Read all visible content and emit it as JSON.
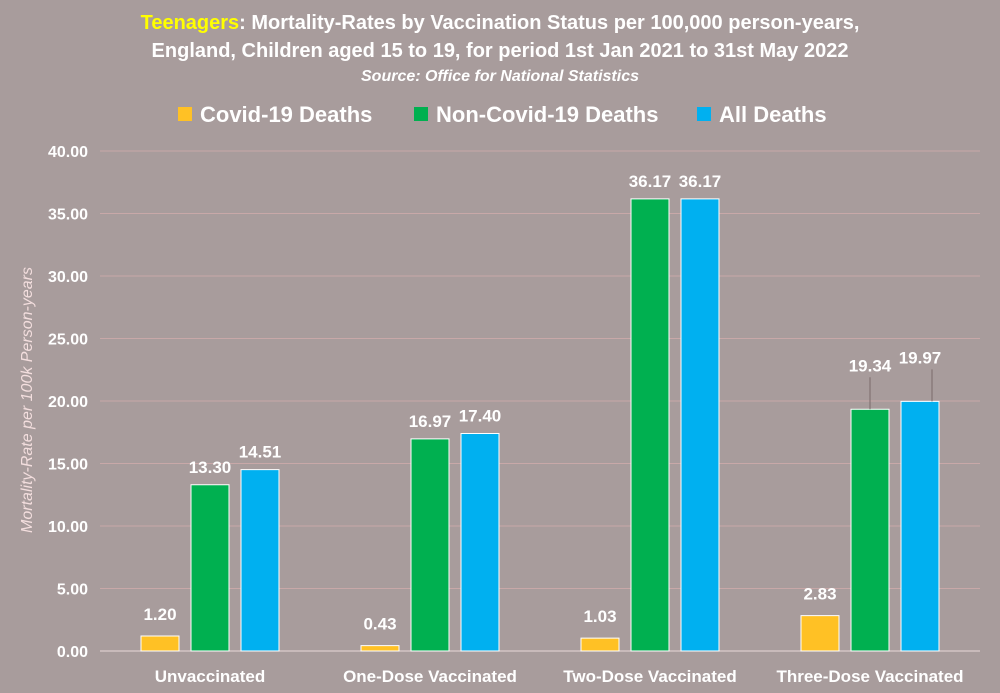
{
  "title": {
    "highlight": "Teenagers",
    "line1_rest": ": Mortality-Rates by Vaccination Status per 100,000 person-years,",
    "line2": "England, Children aged 15 to 19, for period 1st Jan 2021 to 31st May 2022",
    "source": "Source: Office for National Statistics"
  },
  "colors": {
    "background": "#a89c9c",
    "highlight": "#ffff00",
    "gridline": "#c8a8a8"
  },
  "chart_data": {
    "type": "bar",
    "categories": [
      "Unvaccinated",
      "One-Dose Vaccinated",
      "Two-Dose Vaccinated",
      "Three-Dose Vaccinated"
    ],
    "series": [
      {
        "name": "Covid-19 Deaths",
        "color": "#ffc125",
        "values": [
          1.2,
          0.43,
          1.03,
          2.83
        ],
        "labels": [
          "1.20",
          "0.43",
          "1.03",
          "2.83"
        ]
      },
      {
        "name": "Non-Covid-19 Deaths",
        "color": "#00b050",
        "values": [
          13.3,
          16.97,
          36.17,
          19.34
        ],
        "labels": [
          "13.30",
          "16.97",
          "36.17",
          "19.34"
        ]
      },
      {
        "name": "All Deaths",
        "color": "#00b0f0",
        "values": [
          14.51,
          17.4,
          36.17,
          19.97
        ],
        "labels": [
          "14.51",
          "17.40",
          "36.17",
          "19.97"
        ]
      }
    ],
    "ylabel": "Mortality-Rate per 100k Person-years",
    "xlabel": "",
    "ylim": [
      0,
      40
    ],
    "yticks": [
      "0.00",
      "5.00",
      "10.00",
      "15.00",
      "20.00",
      "25.00",
      "30.00",
      "35.00",
      "40.00"
    ],
    "grid": true,
    "legend_position": "top"
  }
}
